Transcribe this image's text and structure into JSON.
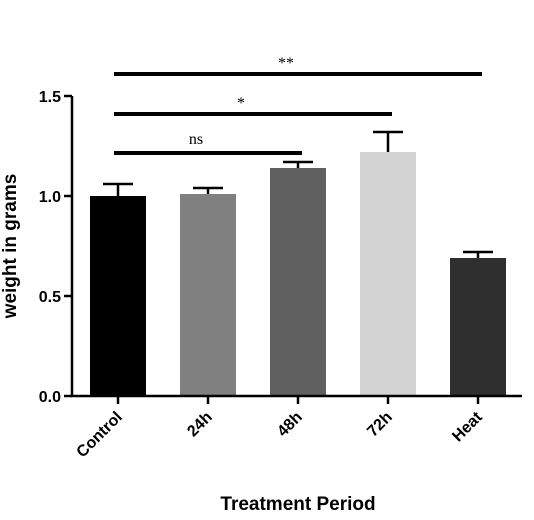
{
  "chart_data": {
    "type": "bar",
    "title": "",
    "xlabel": "Treatment Period",
    "ylabel": "weight in grams",
    "categories": [
      "Control",
      "24h",
      "48h",
      "72h",
      "Heat"
    ],
    "values": [
      1.0,
      1.01,
      1.14,
      1.22,
      0.69
    ],
    "errors": [
      0.06,
      0.03,
      0.03,
      0.1,
      0.03
    ],
    "colors": [
      "#000000",
      "#808080",
      "#606060",
      "#d3d3d3",
      "#2f2f2f"
    ],
    "ylim": [
      0,
      1.5
    ],
    "yticks": [
      0.0,
      0.5,
      1.0,
      1.5
    ],
    "ytick_labels": [
      "0.0",
      "0.5",
      "1.0",
      "1.5"
    ],
    "grid": false,
    "significance": [
      {
        "from": "Control",
        "to": "48h",
        "label": "ns"
      },
      {
        "from": "Control",
        "to": "72h",
        "label": "*"
      },
      {
        "from": "Control",
        "to": "Heat",
        "label": "**"
      }
    ]
  }
}
